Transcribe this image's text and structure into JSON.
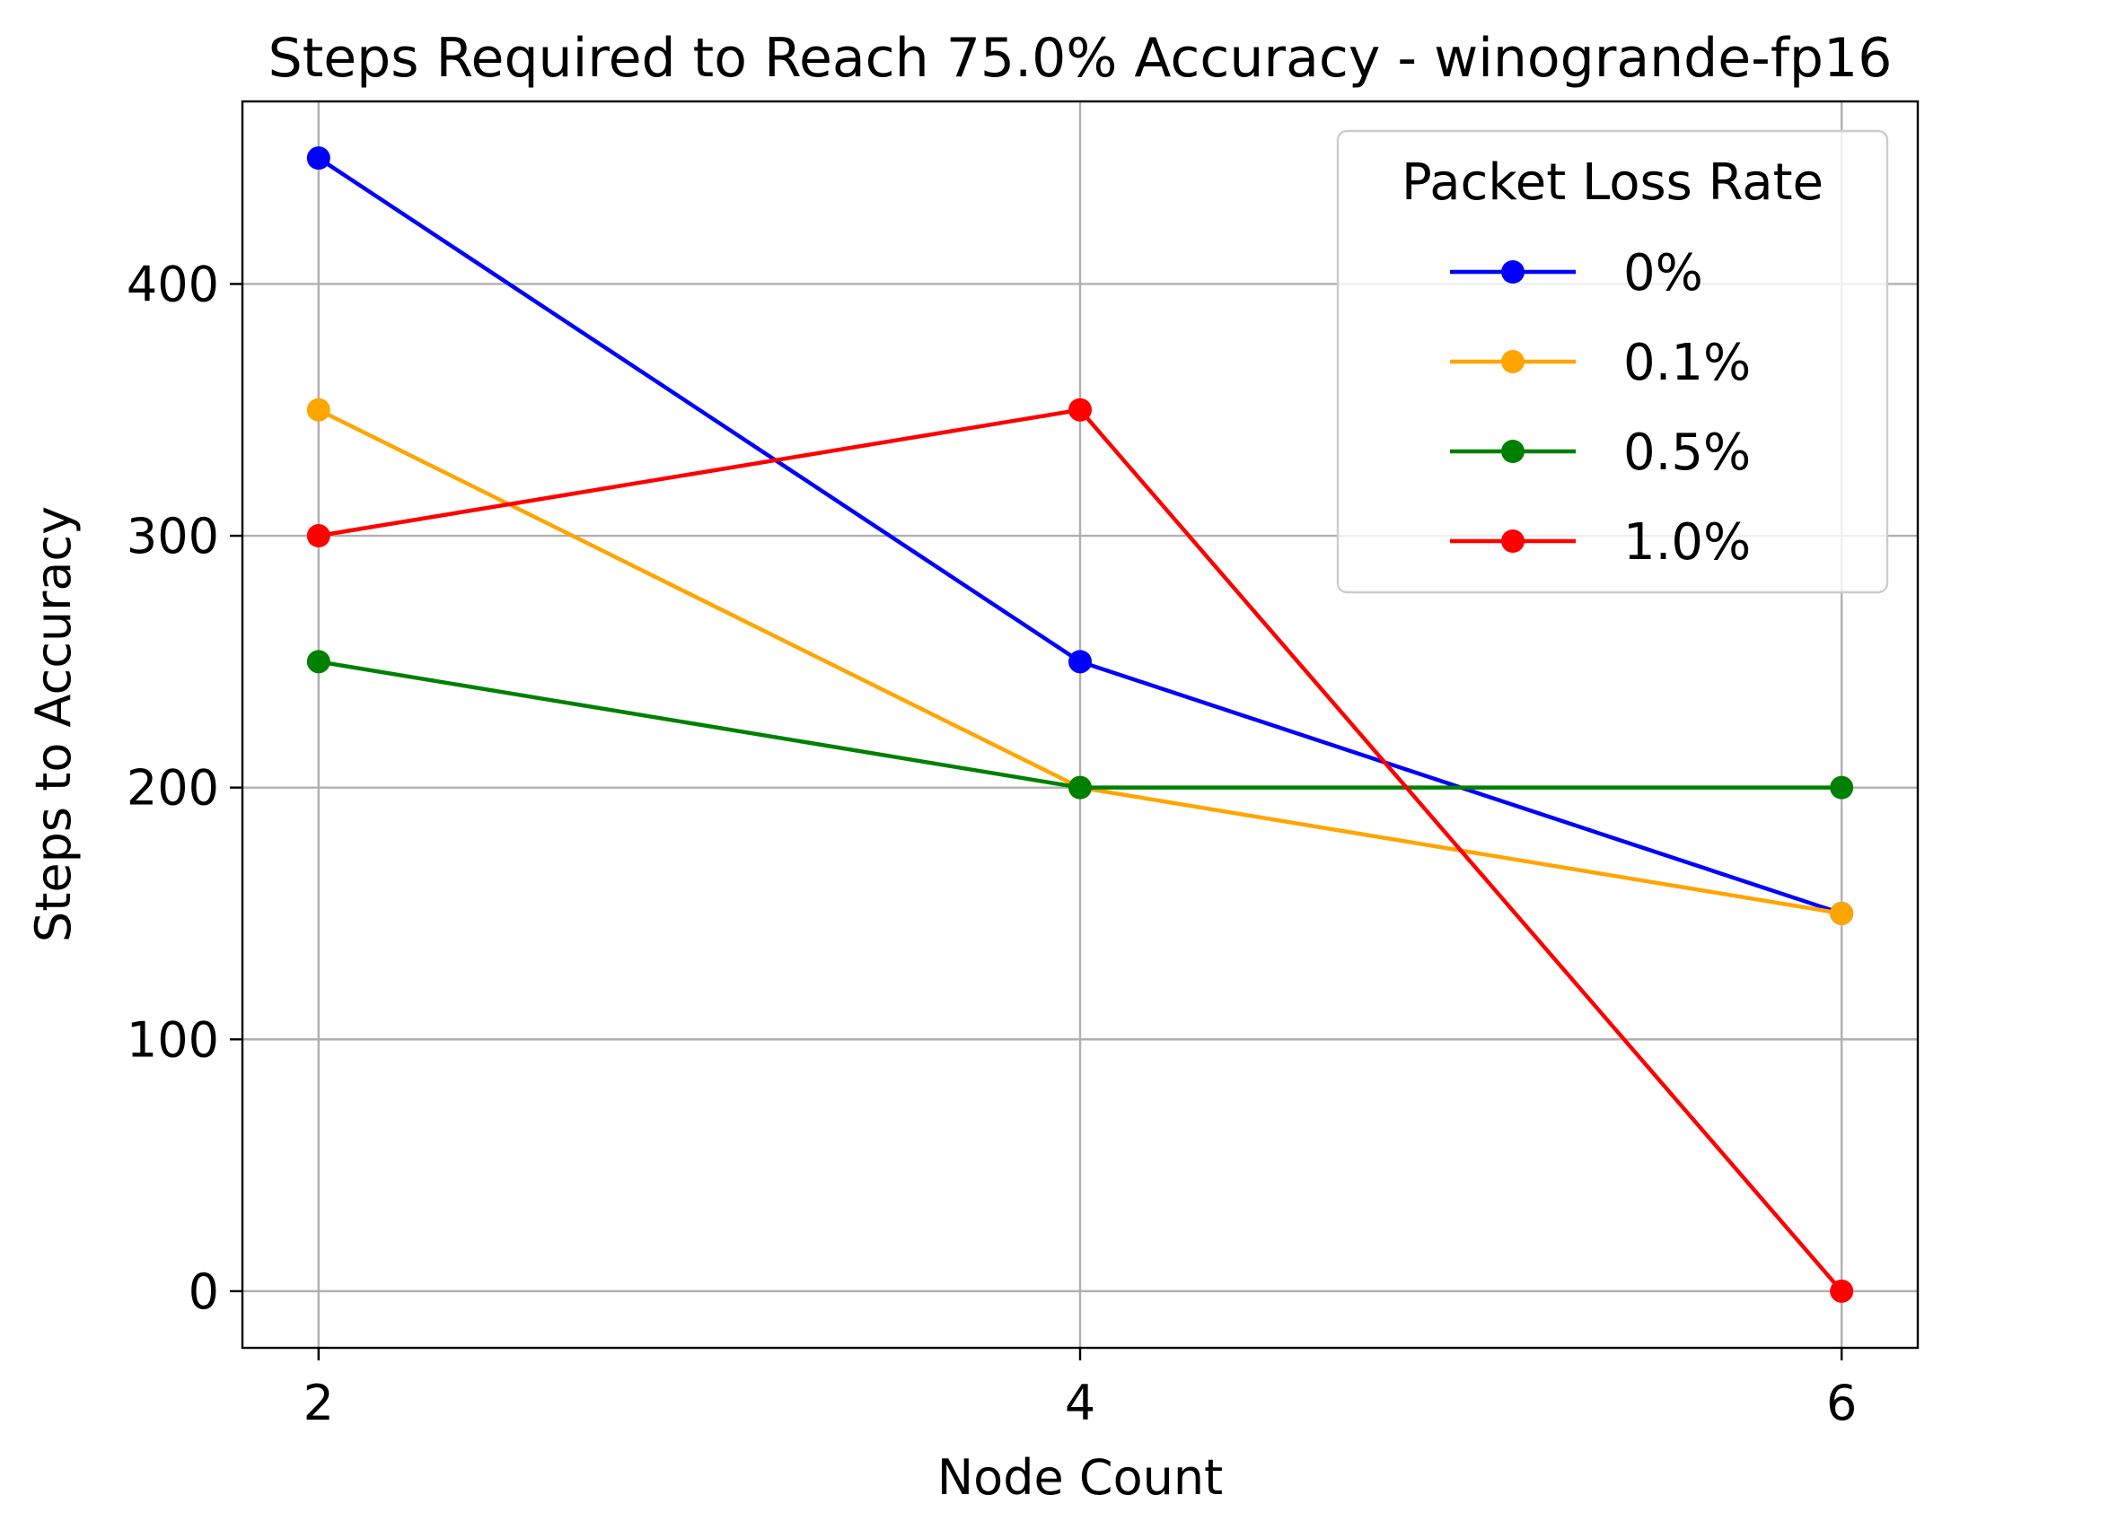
{
  "chart_data": {
    "type": "line",
    "title": "Steps Required to Reach 75.0% Accuracy - winogrande-fp16",
    "xlabel": "Node Count",
    "ylabel": "Steps to Accuracy",
    "x": [
      2,
      4,
      6
    ],
    "xticks": [
      2,
      4,
      6
    ],
    "yticks": [
      0,
      100,
      200,
      300,
      400
    ],
    "xlim": [
      1.8,
      6.2
    ],
    "ylim": [
      -22.5,
      472.5
    ],
    "grid": true,
    "legend": {
      "title": "Packet Loss Rate",
      "placement": "top-right"
    },
    "series": [
      {
        "name": "0%",
        "color": "#0000ff",
        "values": [
          450,
          250,
          150
        ]
      },
      {
        "name": "0.1%",
        "color": "#ffa500",
        "values": [
          350,
          200,
          150
        ]
      },
      {
        "name": "0.5%",
        "color": "#008000",
        "values": [
          250,
          200,
          200
        ]
      },
      {
        "name": "1.0%",
        "color": "#ff0000",
        "values": [
          300,
          350,
          0
        ]
      }
    ]
  }
}
